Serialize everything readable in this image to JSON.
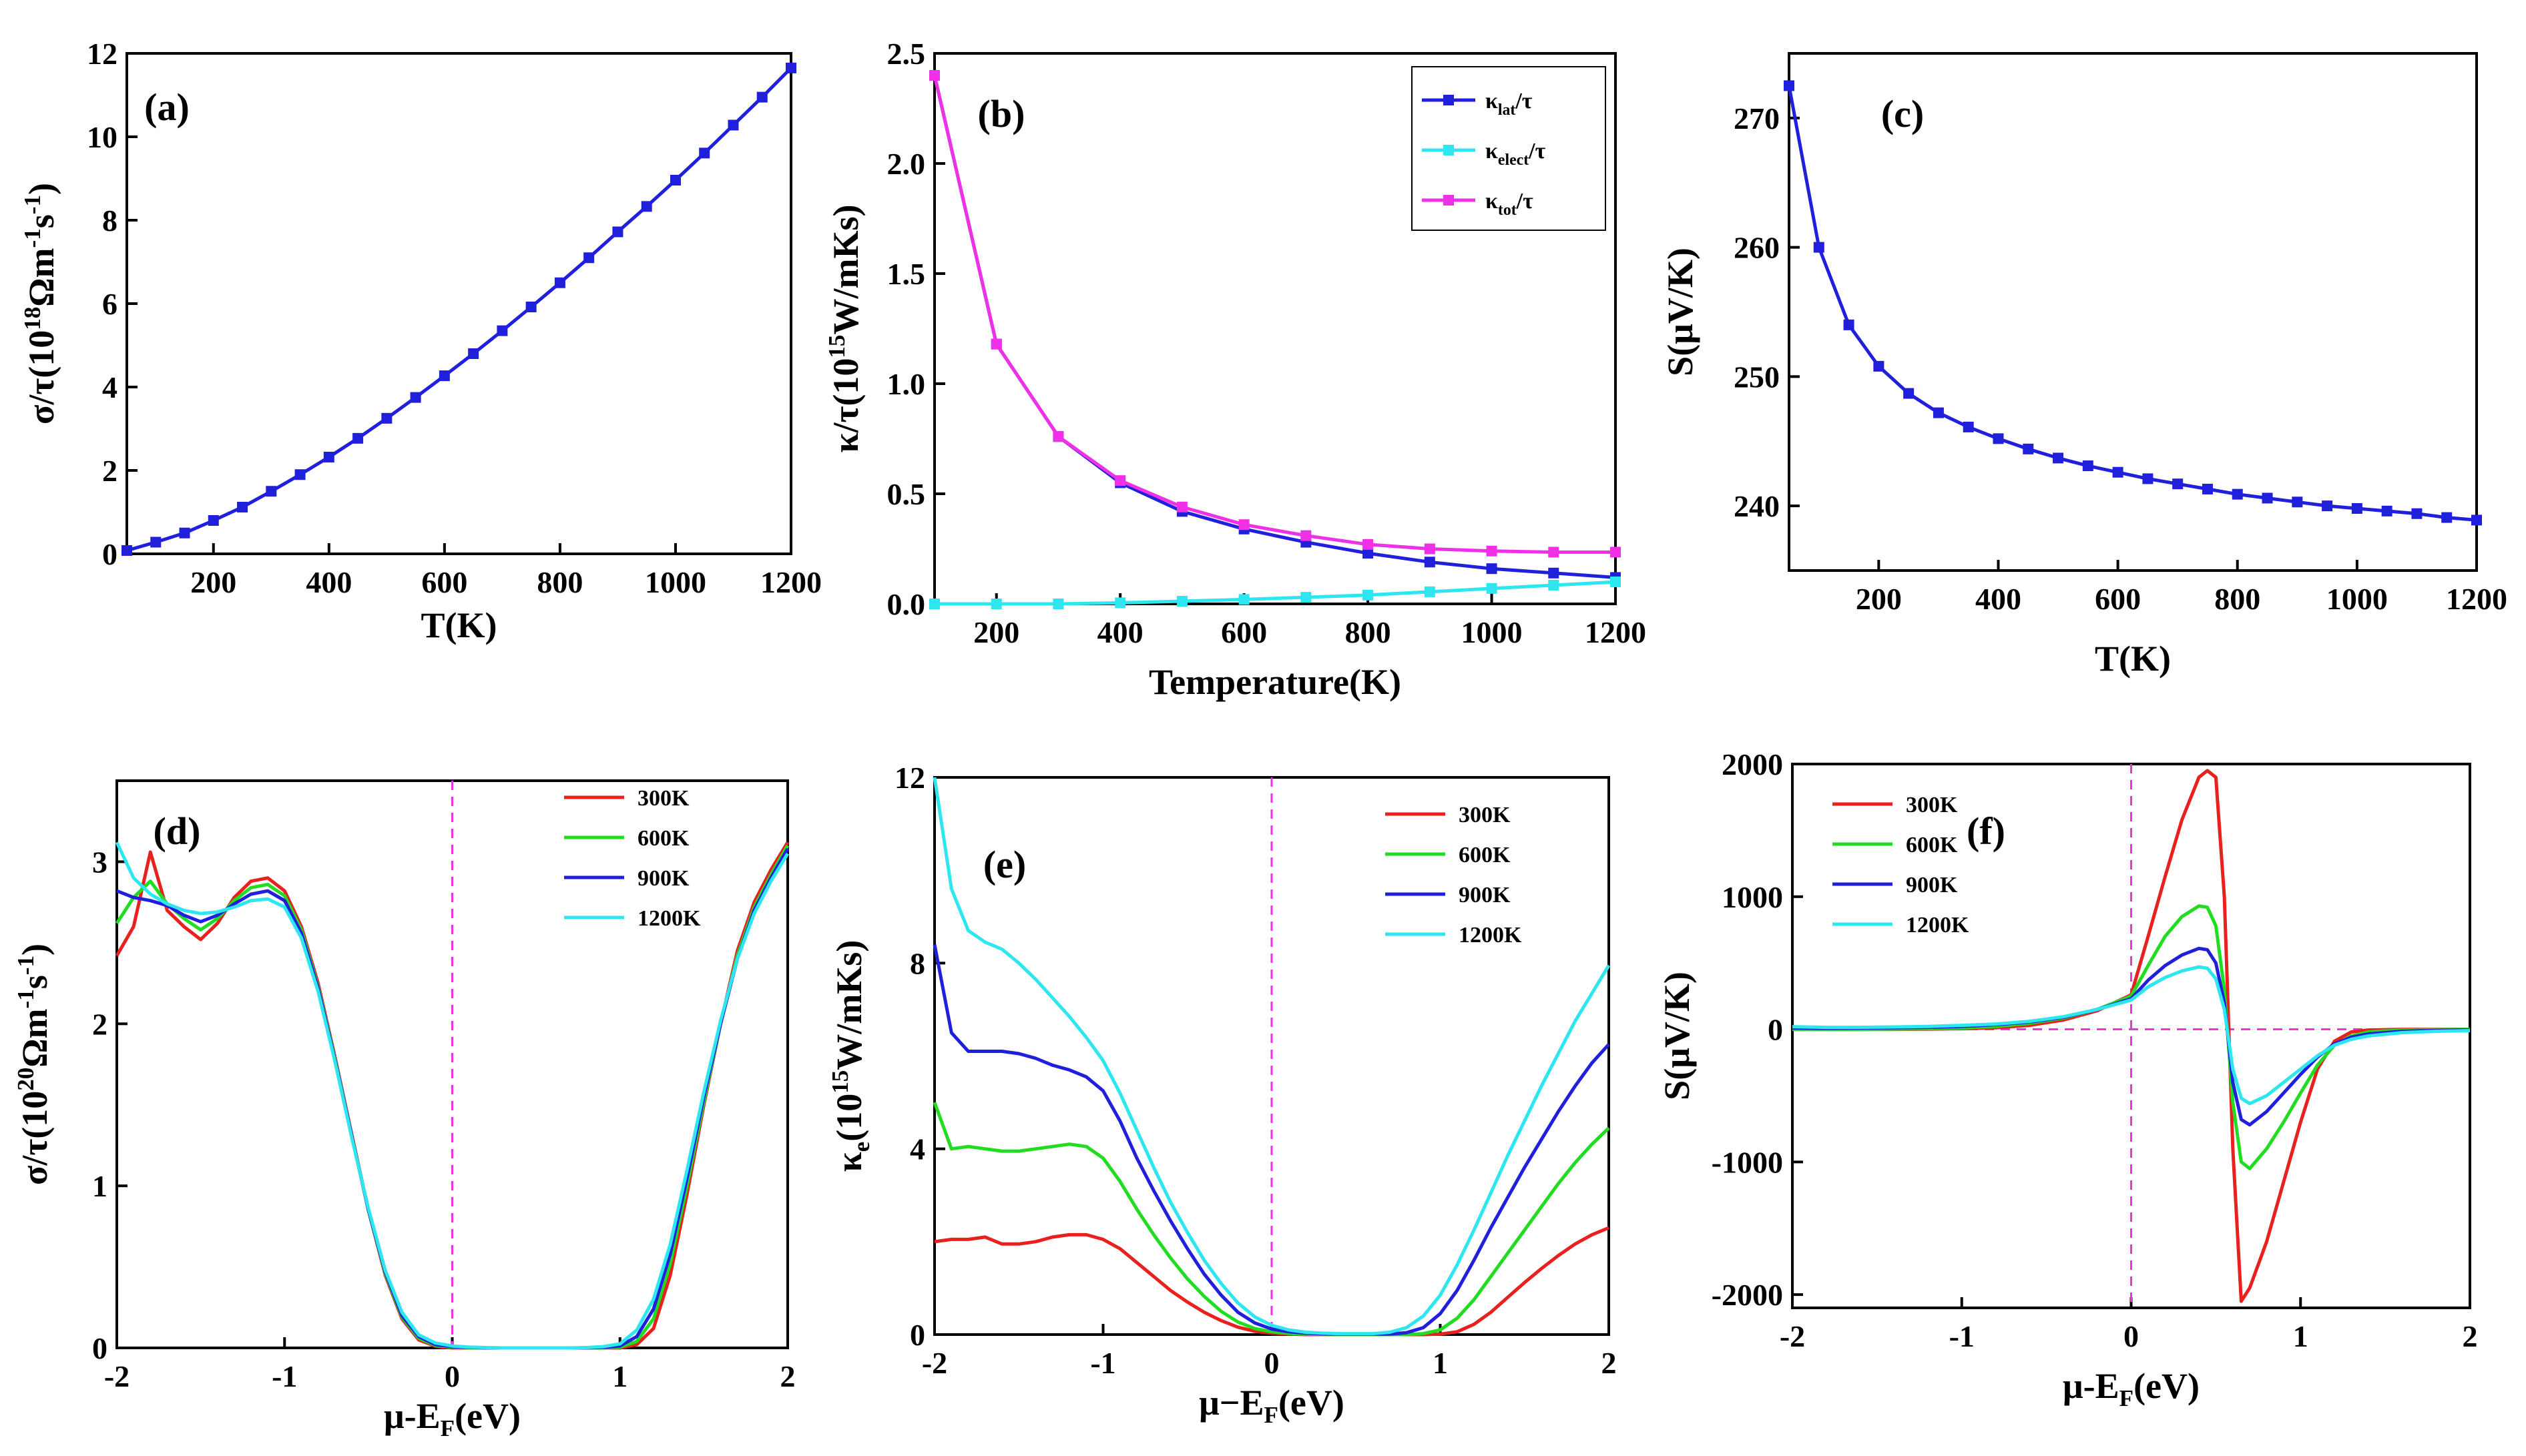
{
  "figure": {
    "panels": [
      "(a)",
      "(b)",
      "(c)",
      "(d)",
      "(e)",
      "(f)"
    ]
  },
  "chart_data": [
    {
      "id": "a",
      "panel_label": "(a)",
      "type": "line",
      "title": "",
      "xlabel": "T(K)",
      "ylabel_parts": [
        "σ/τ(10",
        "18",
        "Ωm",
        "-1",
        "s",
        "-1",
        ")"
      ],
      "xlim": [
        50,
        1200
      ],
      "ylim": [
        0,
        12
      ],
      "xticks": [
        200,
        400,
        600,
        800,
        1000,
        1200
      ],
      "yticks": [
        0,
        2,
        4,
        6,
        8,
        10,
        12
      ],
      "markers": true,
      "series": [
        {
          "name": "σ/τ",
          "color": "#1f1fdc",
          "x": [
            50,
            100,
            150,
            200,
            250,
            300,
            350,
            400,
            450,
            500,
            550,
            600,
            650,
            700,
            750,
            800,
            850,
            900,
            950,
            1000,
            1050,
            1100,
            1150,
            1200
          ],
          "y": [
            0.08,
            0.28,
            0.5,
            0.8,
            1.12,
            1.5,
            1.9,
            2.32,
            2.77,
            3.25,
            3.75,
            4.27,
            4.8,
            5.35,
            5.92,
            6.5,
            7.1,
            7.72,
            8.33,
            8.96,
            9.61,
            10.28,
            10.95,
            11.65
          ]
        }
      ]
    },
    {
      "id": "b",
      "panel_label": "(b)",
      "type": "line",
      "title": "",
      "xlabel": "Temperature(K)",
      "ylabel_parts": [
        "κ/τ(10",
        "15",
        "W/mKs)"
      ],
      "xlim": [
        100,
        1200
      ],
      "ylim": [
        0,
        2.5
      ],
      "xticks": [
        200,
        400,
        600,
        800,
        1000,
        1200
      ],
      "yticks": [
        0.0,
        0.5,
        1.0,
        1.5,
        2.0,
        2.5
      ],
      "ytick_labels": [
        "0.0",
        "0.5",
        "1.0",
        "1.5",
        "2.0",
        "2.5"
      ],
      "markers": true,
      "legend_position": "top-right",
      "series": [
        {
          "name": "κlat/τ",
          "sym": "κ",
          "sub": "lat",
          "suffix": "/τ",
          "color": "#1f1fdc",
          "x": [
            100,
            200,
            300,
            400,
            500,
            600,
            700,
            800,
            900,
            1000,
            1100,
            1200
          ],
          "y": [
            2.4,
            1.18,
            0.76,
            0.55,
            0.42,
            0.34,
            0.28,
            0.23,
            0.19,
            0.16,
            0.14,
            0.12
          ]
        },
        {
          "name": "κelect/τ",
          "sym": "κ",
          "sub": "elect",
          "suffix": "/τ",
          "color": "#2ee6f0",
          "x": [
            100,
            200,
            300,
            400,
            500,
            600,
            700,
            800,
            900,
            1000,
            1100,
            1200
          ],
          "y": [
            0.0,
            0.0,
            0.0,
            0.005,
            0.012,
            0.02,
            0.03,
            0.04,
            0.055,
            0.07,
            0.085,
            0.1
          ]
        },
        {
          "name": "κtot/τ",
          "sym": "κ",
          "sub": "tot",
          "suffix": "/τ",
          "color": "#f030e6",
          "x": [
            100,
            200,
            300,
            400,
            500,
            600,
            700,
            800,
            900,
            1000,
            1100,
            1200
          ],
          "y": [
            2.4,
            1.18,
            0.76,
            0.56,
            0.44,
            0.36,
            0.31,
            0.27,
            0.25,
            0.24,
            0.235,
            0.235
          ]
        }
      ]
    },
    {
      "id": "c",
      "panel_label": "(c)",
      "type": "line",
      "title": "",
      "xlabel": "T(K)",
      "ylabel_parts": [
        "S(μV/K)"
      ],
      "xlim": [
        50,
        1200
      ],
      "ylim": [
        235,
        275
      ],
      "xticks": [
        200,
        400,
        600,
        800,
        1000,
        1200
      ],
      "yticks": [
        240,
        250,
        260,
        270
      ],
      "markers": true,
      "series": [
        {
          "name": "S",
          "color": "#1f1fdc",
          "x": [
            50,
            100,
            150,
            200,
            250,
            300,
            350,
            400,
            450,
            500,
            550,
            600,
            650,
            700,
            750,
            800,
            850,
            900,
            950,
            1000,
            1050,
            1100,
            1150,
            1200
          ],
          "y": [
            272.5,
            260,
            254,
            250.8,
            248.7,
            247.2,
            246.1,
            245.2,
            244.4,
            243.7,
            243.1,
            242.6,
            242.1,
            241.7,
            241.3,
            240.9,
            240.6,
            240.3,
            240.0,
            239.8,
            239.6,
            239.4,
            239.1,
            238.9
          ]
        }
      ]
    },
    {
      "id": "d",
      "panel_label": "(d)",
      "type": "line",
      "title": "",
      "xlabel_parts": [
        "μ-E",
        "F",
        "(eV)"
      ],
      "ylabel_parts": [
        "σ/τ(10",
        "20",
        "Ωm",
        "-1",
        "s",
        "-1",
        ")"
      ],
      "xlim": [
        -2,
        2
      ],
      "ylim": [
        0,
        3.5
      ],
      "xticks": [
        -2,
        -1,
        0,
        1,
        2
      ],
      "yticks": [
        0,
        1,
        2,
        3
      ],
      "vline": 0,
      "legend_position": "top-right",
      "x": [
        -2.0,
        -1.9,
        -1.8,
        -1.7,
        -1.6,
        -1.5,
        -1.4,
        -1.3,
        -1.2,
        -1.1,
        -1.0,
        -0.9,
        -0.8,
        -0.7,
        -0.6,
        -0.5,
        -0.4,
        -0.3,
        -0.2,
        -0.1,
        0.0,
        0.1,
        0.2,
        0.3,
        0.4,
        0.5,
        0.6,
        0.7,
        0.8,
        0.9,
        1.0,
        1.1,
        1.2,
        1.3,
        1.4,
        1.5,
        1.6,
        1.7,
        1.8,
        1.9,
        2.0
      ],
      "series": [
        {
          "name": "300K",
          "color": "#e8201e",
          "values": [
            2.42,
            2.6,
            3.06,
            2.7,
            2.6,
            2.52,
            2.62,
            2.78,
            2.88,
            2.9,
            2.82,
            2.6,
            2.25,
            1.8,
            1.32,
            0.85,
            0.45,
            0.18,
            0.05,
            0.01,
            0.0,
            0.0,
            0.0,
            0.0,
            0.0,
            0.0,
            0.0,
            0.0,
            0.0,
            0.0,
            0.0,
            0.02,
            0.12,
            0.45,
            0.95,
            1.5,
            2.0,
            2.45,
            2.75,
            2.95,
            3.12
          ]
        },
        {
          "name": "600K",
          "color": "#22dc22",
          "values": [
            2.62,
            2.78,
            2.88,
            2.74,
            2.65,
            2.58,
            2.65,
            2.76,
            2.84,
            2.86,
            2.79,
            2.58,
            2.23,
            1.79,
            1.31,
            0.85,
            0.46,
            0.19,
            0.06,
            0.015,
            0.005,
            0.0,
            0.0,
            0.0,
            0.0,
            0.0,
            0.0,
            0.0,
            0.0,
            0.0,
            0.005,
            0.04,
            0.18,
            0.52,
            1.0,
            1.52,
            2.0,
            2.42,
            2.72,
            2.92,
            3.1
          ]
        },
        {
          "name": "900K",
          "color": "#1f1fdc",
          "values": [
            2.82,
            2.78,
            2.76,
            2.73,
            2.67,
            2.63,
            2.67,
            2.74,
            2.8,
            2.82,
            2.76,
            2.56,
            2.22,
            1.78,
            1.31,
            0.85,
            0.47,
            0.2,
            0.07,
            0.02,
            0.008,
            0.003,
            0.0,
            0.0,
            0.0,
            0.0,
            0.0,
            0.0,
            0.0,
            0.003,
            0.012,
            0.07,
            0.24,
            0.58,
            1.05,
            1.55,
            2.0,
            2.4,
            2.7,
            2.9,
            3.08
          ]
        },
        {
          "name": "1200K",
          "color": "#2ee6f0",
          "values": [
            3.12,
            2.9,
            2.8,
            2.74,
            2.7,
            2.68,
            2.69,
            2.72,
            2.76,
            2.77,
            2.72,
            2.53,
            2.2,
            1.77,
            1.3,
            0.86,
            0.48,
            0.22,
            0.08,
            0.03,
            0.012,
            0.005,
            0.002,
            0.0,
            0.0,
            0.0,
            0.0,
            0.0,
            0.002,
            0.008,
            0.025,
            0.11,
            0.3,
            0.64,
            1.1,
            1.58,
            2.02,
            2.4,
            2.68,
            2.88,
            3.05
          ]
        }
      ]
    },
    {
      "id": "e",
      "panel_label": "(e)",
      "type": "line",
      "title": "",
      "xlabel_parts": [
        "μ−E",
        "F",
        "(eV)"
      ],
      "ylabel_parts": [
        "κ",
        "e",
        "(10",
        "15",
        "W/mKs)"
      ],
      "xlim": [
        -2,
        2
      ],
      "ylim": [
        0,
        12
      ],
      "xticks": [
        -2,
        -1,
        0,
        1,
        2
      ],
      "yticks": [
        0,
        4,
        8,
        12
      ],
      "vline": 0,
      "legend_position": "top-right",
      "x": [
        -2.0,
        -1.9,
        -1.8,
        -1.7,
        -1.6,
        -1.5,
        -1.4,
        -1.3,
        -1.2,
        -1.1,
        -1.0,
        -0.9,
        -0.8,
        -0.7,
        -0.6,
        -0.5,
        -0.4,
        -0.3,
        -0.2,
        -0.1,
        0.0,
        0.1,
        0.2,
        0.3,
        0.4,
        0.5,
        0.6,
        0.7,
        0.8,
        0.9,
        1.0,
        1.1,
        1.2,
        1.3,
        1.4,
        1.5,
        1.6,
        1.7,
        1.8,
        1.9,
        2.0
      ],
      "series": [
        {
          "name": "300K",
          "color": "#e8201e",
          "values": [
            2.0,
            2.05,
            2.05,
            2.1,
            1.95,
            1.95,
            2.0,
            2.1,
            2.15,
            2.15,
            2.05,
            1.85,
            1.55,
            1.25,
            0.95,
            0.7,
            0.48,
            0.3,
            0.16,
            0.07,
            0.03,
            0.01,
            0.0,
            0.0,
            0.0,
            0.0,
            0.0,
            0.0,
            0.0,
            0.0,
            0.01,
            0.06,
            0.22,
            0.48,
            0.8,
            1.12,
            1.42,
            1.7,
            1.95,
            2.15,
            2.3
          ]
        },
        {
          "name": "600K",
          "color": "#22dc22",
          "values": [
            5.0,
            4.0,
            4.05,
            4.0,
            3.95,
            3.95,
            4.0,
            4.05,
            4.1,
            4.05,
            3.8,
            3.3,
            2.7,
            2.15,
            1.65,
            1.2,
            0.82,
            0.5,
            0.27,
            0.13,
            0.06,
            0.025,
            0.01,
            0.003,
            0.0,
            0.0,
            0.0,
            0.0,
            0.0,
            0.02,
            0.1,
            0.35,
            0.75,
            1.25,
            1.75,
            2.25,
            2.75,
            3.25,
            3.7,
            4.1,
            4.45
          ]
        },
        {
          "name": "900K",
          "color": "#1f1fdc",
          "values": [
            8.4,
            6.5,
            6.1,
            6.1,
            6.1,
            6.05,
            5.95,
            5.8,
            5.7,
            5.55,
            5.25,
            4.6,
            3.8,
            3.1,
            2.45,
            1.85,
            1.3,
            0.85,
            0.48,
            0.25,
            0.12,
            0.06,
            0.03,
            0.015,
            0.01,
            0.01,
            0.01,
            0.01,
            0.04,
            0.15,
            0.45,
            0.95,
            1.6,
            2.3,
            2.95,
            3.6,
            4.2,
            4.8,
            5.35,
            5.85,
            6.25
          ]
        },
        {
          "name": "1200K",
          "color": "#2ee6f0",
          "values": [
            12.0,
            9.6,
            8.7,
            8.45,
            8.3,
            8.0,
            7.65,
            7.25,
            6.85,
            6.4,
            5.9,
            5.2,
            4.4,
            3.6,
            2.85,
            2.2,
            1.6,
            1.1,
            0.68,
            0.38,
            0.2,
            0.1,
            0.05,
            0.03,
            0.02,
            0.02,
            0.02,
            0.05,
            0.15,
            0.4,
            0.85,
            1.5,
            2.25,
            3.05,
            3.85,
            4.6,
            5.35,
            6.05,
            6.75,
            7.35,
            7.95
          ]
        }
      ]
    },
    {
      "id": "f",
      "panel_label": "(f)",
      "type": "line",
      "title": "",
      "xlabel_parts": [
        "μ-E",
        "F",
        "(eV)"
      ],
      "ylabel_parts": [
        "S(μV/K)"
      ],
      "xlim": [
        -2,
        2
      ],
      "ylim": [
        -2100,
        2000
      ],
      "xticks": [
        -2,
        -1,
        0,
        1,
        2
      ],
      "yticks": [
        -2000,
        -1000,
        0,
        1000,
        2000
      ],
      "vline": 0,
      "hline": 0,
      "legend_position": "top-left",
      "x": [
        -2.0,
        -1.8,
        -1.6,
        -1.4,
        -1.2,
        -1.0,
        -0.8,
        -0.6,
        -0.4,
        -0.2,
        0.0,
        0.1,
        0.2,
        0.3,
        0.4,
        0.45,
        0.5,
        0.55,
        0.6,
        0.65,
        0.7,
        0.8,
        0.9,
        1.0,
        1.1,
        1.2,
        1.3,
        1.4,
        1.6,
        1.8,
        2.0
      ],
      "series": [
        {
          "name": "300K",
          "color": "#e8201e",
          "values": [
            0,
            0,
            0,
            0,
            2,
            5,
            12,
            30,
            70,
            140,
            260,
            700,
            1150,
            1580,
            1900,
            1950,
            1900,
            1000,
            -900,
            -2050,
            -1950,
            -1600,
            -1150,
            -700,
            -300,
            -90,
            -20,
            -5,
            0,
            0,
            0
          ]
        },
        {
          "name": "600K",
          "color": "#22dc22",
          "values": [
            0,
            0,
            0,
            2,
            5,
            10,
            22,
            45,
            85,
            150,
            250,
            480,
            700,
            850,
            930,
            920,
            780,
            300,
            -550,
            -1000,
            -1050,
            -900,
            -700,
            -480,
            -270,
            -120,
            -50,
            -20,
            -5,
            -2,
            0
          ]
        },
        {
          "name": "900K",
          "color": "#1f1fdc",
          "values": [
            10,
            8,
            10,
            12,
            15,
            22,
            35,
            55,
            90,
            150,
            230,
            370,
            480,
            560,
            610,
            600,
            500,
            200,
            -400,
            -680,
            -720,
            -620,
            -480,
            -340,
            -210,
            -110,
            -60,
            -35,
            -15,
            -8,
            -5
          ]
        },
        {
          "name": "1200K",
          "color": "#2ee6f0",
          "values": [
            20,
            15,
            15,
            18,
            22,
            30,
            40,
            60,
            95,
            150,
            220,
            320,
            390,
            440,
            470,
            460,
            380,
            150,
            -300,
            -520,
            -560,
            -500,
            -400,
            -300,
            -200,
            -120,
            -75,
            -50,
            -25,
            -15,
            -10
          ]
        }
      ]
    }
  ]
}
